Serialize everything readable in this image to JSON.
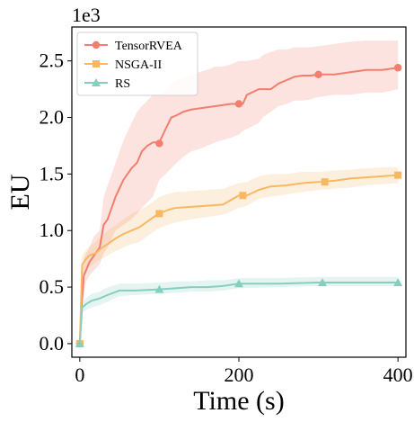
{
  "chart_data": {
    "type": "line",
    "title": "",
    "xlabel": "Time (s)",
    "ylabel": "EU",
    "y_multiplier_label": "1e3",
    "xlim": [
      -10,
      410
    ],
    "ylim": [
      -0.12,
      2.8
    ],
    "x_ticks": [
      0,
      200,
      400
    ],
    "x_tick_labels": [
      "0",
      "200",
      "400"
    ],
    "y_ticks": [
      0.0,
      0.5,
      1.0,
      1.5,
      2.0,
      2.5
    ],
    "y_tick_labels": [
      "0.0",
      "0.5",
      "1.0",
      "1.5",
      "2.0",
      "2.5"
    ],
    "grid": false,
    "legend_position": "top-left",
    "series": [
      {
        "name": "TensorRVEA",
        "color": "#f07f6e",
        "marker": "circle",
        "x": [
          0,
          2,
          5,
          8,
          12,
          18,
          25,
          30,
          35,
          45,
          55,
          65,
          72,
          78,
          85,
          92,
          100,
          108,
          115,
          122,
          130,
          140,
          150,
          160,
          170,
          180,
          190,
          200,
          205,
          210,
          225,
          230,
          240,
          250,
          260,
          270,
          280,
          290,
          300,
          320,
          340,
          360,
          380,
          400
        ],
        "y": [
          0.0,
          0.3,
          0.6,
          0.65,
          0.72,
          0.78,
          0.85,
          1.05,
          1.1,
          1.3,
          1.45,
          1.55,
          1.6,
          1.7,
          1.75,
          1.78,
          1.78,
          1.9,
          2.0,
          2.02,
          2.05,
          2.07,
          2.08,
          2.09,
          2.1,
          2.11,
          2.12,
          2.12,
          2.12,
          2.2,
          2.25,
          2.25,
          2.25,
          2.3,
          2.33,
          2.36,
          2.37,
          2.37,
          2.38,
          2.38,
          2.4,
          2.42,
          2.42,
          2.44
        ],
        "y_lower": [
          0.0,
          0.25,
          0.45,
          0.55,
          0.6,
          0.65,
          0.7,
          0.8,
          0.85,
          1.0,
          1.05,
          1.1,
          1.15,
          1.2,
          1.25,
          1.3,
          1.45,
          1.5,
          1.55,
          1.6,
          1.65,
          1.7,
          1.72,
          1.75,
          1.78,
          1.8,
          1.82,
          1.85,
          1.88,
          1.9,
          1.95,
          2.0,
          2.05,
          2.1,
          2.12,
          2.15,
          2.15,
          2.16,
          2.18,
          2.2,
          2.2,
          2.22,
          2.22,
          2.25
        ],
        "y_upper": [
          0.0,
          0.35,
          0.75,
          0.8,
          0.85,
          0.95,
          1.0,
          1.3,
          1.4,
          1.6,
          1.8,
          1.95,
          2.05,
          2.1,
          2.15,
          2.2,
          2.2,
          2.25,
          2.3,
          2.33,
          2.35,
          2.37,
          2.4,
          2.42,
          2.45,
          2.45,
          2.47,
          2.5,
          2.5,
          2.5,
          2.52,
          2.55,
          2.58,
          2.6,
          2.6,
          2.62,
          2.62,
          2.62,
          2.63,
          2.65,
          2.67,
          2.68,
          2.68,
          2.68
        ]
      },
      {
        "name": "NSGA-II",
        "color": "#f8b862",
        "marker": "square",
        "x": [
          0,
          3,
          8,
          12,
          20,
          28,
          35,
          45,
          55,
          65,
          75,
          85,
          95,
          100,
          110,
          120,
          140,
          160,
          180,
          200,
          210,
          225,
          240,
          260,
          280,
          300,
          320,
          340,
          360,
          380,
          400
        ],
        "y": [
          0.0,
          0.7,
          0.75,
          0.78,
          0.8,
          0.85,
          0.88,
          0.93,
          0.97,
          1.0,
          1.03,
          1.08,
          1.13,
          1.15,
          1.18,
          1.2,
          1.21,
          1.22,
          1.23,
          1.31,
          1.31,
          1.36,
          1.39,
          1.4,
          1.42,
          1.43,
          1.44,
          1.46,
          1.47,
          1.48,
          1.49
        ],
        "y_lower": [
          0.0,
          0.6,
          0.65,
          0.68,
          0.72,
          0.75,
          0.78,
          0.82,
          0.85,
          0.88,
          0.9,
          0.95,
          1.0,
          1.02,
          1.05,
          1.07,
          1.1,
          1.12,
          1.14,
          1.2,
          1.22,
          1.28,
          1.3,
          1.32,
          1.34,
          1.36,
          1.37,
          1.38,
          1.4,
          1.41,
          1.42
        ],
        "y_upper": [
          0.0,
          0.78,
          0.83,
          0.86,
          0.9,
          0.95,
          1.0,
          1.05,
          1.1,
          1.15,
          1.18,
          1.22,
          1.27,
          1.3,
          1.32,
          1.34,
          1.35,
          1.36,
          1.37,
          1.42,
          1.43,
          1.48,
          1.5,
          1.5,
          1.52,
          1.52,
          1.53,
          1.54,
          1.55,
          1.56,
          1.56
        ]
      },
      {
        "name": "RS",
        "color": "#86cfc0",
        "marker": "triangle",
        "x": [
          0,
          3,
          8,
          15,
          25,
          35,
          50,
          70,
          100,
          120,
          140,
          160,
          180,
          200,
          250,
          300,
          350,
          400
        ],
        "y": [
          0.0,
          0.32,
          0.35,
          0.38,
          0.4,
          0.43,
          0.47,
          0.47,
          0.48,
          0.49,
          0.5,
          0.5,
          0.51,
          0.53,
          0.53,
          0.54,
          0.54,
          0.54
        ],
        "y_lower": [
          0.0,
          0.28,
          0.3,
          0.32,
          0.34,
          0.37,
          0.42,
          0.43,
          0.44,
          0.45,
          0.46,
          0.46,
          0.47,
          0.49,
          0.5,
          0.51,
          0.51,
          0.51
        ],
        "y_upper": [
          0.0,
          0.36,
          0.4,
          0.44,
          0.46,
          0.5,
          0.53,
          0.53,
          0.54,
          0.55,
          0.55,
          0.56,
          0.56,
          0.58,
          0.58,
          0.59,
          0.59,
          0.59
        ]
      }
    ],
    "marker_points": [
      {
        "series": "TensorRVEA",
        "x": [
          0,
          100,
          200,
          300,
          400
        ],
        "y": [
          0.0,
          1.77,
          2.12,
          2.38,
          2.44
        ]
      },
      {
        "series": "NSGA-II",
        "x": [
          0,
          100,
          205,
          308,
          400
        ],
        "y": [
          0.0,
          1.15,
          1.31,
          1.43,
          1.49
        ]
      },
      {
        "series": "RS",
        "x": [
          0,
          100,
          200,
          305,
          400
        ],
        "y": [
          0.0,
          0.48,
          0.53,
          0.54,
          0.54
        ]
      }
    ]
  }
}
